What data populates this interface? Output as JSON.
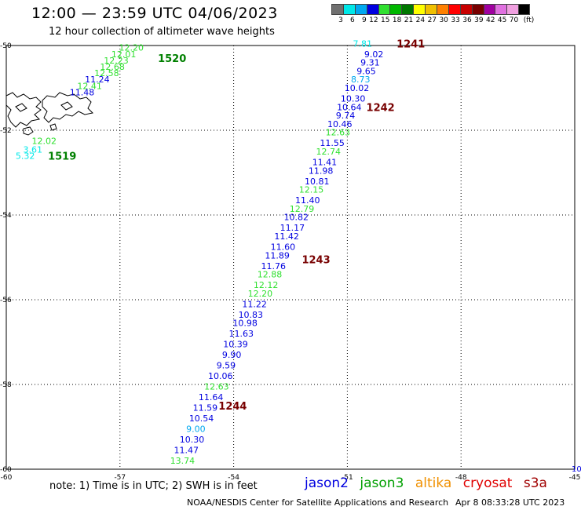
{
  "header": {
    "title": "12:00 — 23:59 UTC 04/06/2023",
    "subtitle": "12 hour collection of altimeter wave heights"
  },
  "scale": {
    "unit": "(ft)",
    "colors": [
      "#707070",
      "#00e8e8",
      "#00a8f0",
      "#0000e0",
      "#30e030",
      "#00b800",
      "#007800",
      "#ffff00",
      "#f0c000",
      "#ff8000",
      "#ff0000",
      "#c80000",
      "#780000",
      "#a000a0",
      "#e070e0",
      "#f0a0e0",
      "#000000"
    ],
    "labels": [
      "3",
      "6",
      "9",
      "12",
      "15",
      "18",
      "21",
      "24",
      "27",
      "30",
      "33",
      "36",
      "39",
      "42",
      "45",
      "70"
    ]
  },
  "chart_data": {
    "type": "scatter",
    "title": "12:00 — 23:59 UTC 04/06/2023",
    "subtitle": "12 hour collection of altimeter wave heights",
    "x_ticks": [
      "-60",
      "-57",
      "-54",
      "-51",
      "-48",
      "-45"
    ],
    "y_ticks": [
      "-50",
      "-52",
      "-54",
      "-56",
      "-58",
      "-60"
    ],
    "xlim": [
      -60,
      -45
    ],
    "ylim": [
      -60,
      -50
    ],
    "grid": true,
    "corner_label": "10",
    "track_times": [
      {
        "label": "1520",
        "lon": -56.0,
        "lat": -50.3
      },
      {
        "label": "1519",
        "lon": -58.9,
        "lat": -52.6
      },
      {
        "label": "1241",
        "lon": -49.7,
        "lat": -49.95
      },
      {
        "label": "1242",
        "lon": -50.5,
        "lat": -51.45
      },
      {
        "label": "1243",
        "lon": -52.2,
        "lat": -55.05
      },
      {
        "label": "1244",
        "lon": -54.4,
        "lat": -58.5
      }
    ],
    "points": [
      {
        "v": "12.20",
        "lon": -56.7,
        "lat": -50.05,
        "c": "#30e030"
      },
      {
        "v": "12.01",
        "lon": -56.9,
        "lat": -50.2,
        "c": "#30e030"
      },
      {
        "v": "12.23",
        "lon": -57.1,
        "lat": -50.35,
        "c": "#30e030"
      },
      {
        "v": "12.68",
        "lon": -57.2,
        "lat": -50.5,
        "c": "#30e030"
      },
      {
        "v": "12.58",
        "lon": -57.35,
        "lat": -50.65,
        "c": "#30e030"
      },
      {
        "v": "11.24",
        "lon": -57.6,
        "lat": -50.8,
        "c": "#0000e0"
      },
      {
        "v": "12.41",
        "lon": -57.8,
        "lat": -50.95,
        "c": "#30e030"
      },
      {
        "v": "11.48",
        "lon": -58.0,
        "lat": -51.1,
        "c": "#0000e0"
      },
      {
        "v": "12.02",
        "lon": -59.0,
        "lat": -52.25,
        "c": "#30e030"
      },
      {
        "v": "3.61",
        "lon": -59.3,
        "lat": -52.45,
        "c": "#00e8e8"
      },
      {
        "v": "5.32",
        "lon": -59.5,
        "lat": -52.6,
        "c": "#00e8e8"
      },
      {
        "v": "7.81",
        "lon": -50.6,
        "lat": -49.95,
        "c": "#00e8e8"
      },
      {
        "v": "9.02",
        "lon": -50.3,
        "lat": -50.2,
        "c": "#0000e0"
      },
      {
        "v": "9.31",
        "lon": -50.4,
        "lat": -50.4,
        "c": "#0000e0"
      },
      {
        "v": "9.65",
        "lon": -50.5,
        "lat": -50.6,
        "c": "#0000e0"
      },
      {
        "v": "8.73",
        "lon": -50.65,
        "lat": -50.8,
        "c": "#00a8f0"
      },
      {
        "v": "10.02",
        "lon": -50.75,
        "lat": -51.0,
        "c": "#0000e0"
      },
      {
        "v": "10.30",
        "lon": -50.85,
        "lat": -51.25,
        "c": "#0000e0"
      },
      {
        "v": "10.64",
        "lon": -50.95,
        "lat": -51.45,
        "c": "#0000e0"
      },
      {
        "v": "9.74",
        "lon": -51.05,
        "lat": -51.65,
        "c": "#0000e0"
      },
      {
        "v": "10.46",
        "lon": -51.2,
        "lat": -51.85,
        "c": "#0000e0"
      },
      {
        "v": "12.63",
        "lon": -51.25,
        "lat": -52.05,
        "c": "#30e030"
      },
      {
        "v": "11.55",
        "lon": -51.4,
        "lat": -52.3,
        "c": "#0000e0"
      },
      {
        "v": "12.74",
        "lon": -51.5,
        "lat": -52.5,
        "c": "#30e030"
      },
      {
        "v": "11.41",
        "lon": -51.6,
        "lat": -52.75,
        "c": "#0000e0"
      },
      {
        "v": "11.98",
        "lon": -51.7,
        "lat": -52.95,
        "c": "#0000e0"
      },
      {
        "v": "10.81",
        "lon": -51.8,
        "lat": -53.2,
        "c": "#0000e0"
      },
      {
        "v": "12.15",
        "lon": -51.95,
        "lat": -53.4,
        "c": "#30e030"
      },
      {
        "v": "11.40",
        "lon": -52.05,
        "lat": -53.65,
        "c": "#0000e0"
      },
      {
        "v": "12.79",
        "lon": -52.2,
        "lat": -53.85,
        "c": "#30e030"
      },
      {
        "v": "10.82",
        "lon": -52.35,
        "lat": -54.05,
        "c": "#0000e0"
      },
      {
        "v": "11.17",
        "lon": -52.45,
        "lat": -54.3,
        "c": "#0000e0"
      },
      {
        "v": "11.42",
        "lon": -52.6,
        "lat": -54.5,
        "c": "#0000e0"
      },
      {
        "v": "11.60",
        "lon": -52.7,
        "lat": -54.75,
        "c": "#0000e0"
      },
      {
        "v": "11.89",
        "lon": -52.85,
        "lat": -54.95,
        "c": "#0000e0"
      },
      {
        "v": "11.76",
        "lon": -52.95,
        "lat": -55.2,
        "c": "#0000e0"
      },
      {
        "v": "12.88",
        "lon": -53.05,
        "lat": -55.4,
        "c": "#30e030"
      },
      {
        "v": "12.12",
        "lon": -53.15,
        "lat": -55.65,
        "c": "#30e030"
      },
      {
        "v": "12.20",
        "lon": -53.3,
        "lat": -55.85,
        "c": "#30e030"
      },
      {
        "v": "11.22",
        "lon": -53.45,
        "lat": -56.1,
        "c": "#0000e0"
      },
      {
        "v": "10.83",
        "lon": -53.55,
        "lat": -56.35,
        "c": "#0000e0"
      },
      {
        "v": "10.98",
        "lon": -53.7,
        "lat": -56.55,
        "c": "#0000e0"
      },
      {
        "v": "11.63",
        "lon": -53.8,
        "lat": -56.8,
        "c": "#0000e0"
      },
      {
        "v": "10.39",
        "lon": -53.95,
        "lat": -57.05,
        "c": "#0000e0"
      },
      {
        "v": "9.90",
        "lon": -54.05,
        "lat": -57.3,
        "c": "#0000e0"
      },
      {
        "v": "9.59",
        "lon": -54.2,
        "lat": -57.55,
        "c": "#0000e0"
      },
      {
        "v": "10.06",
        "lon": -54.35,
        "lat": -57.8,
        "c": "#0000e0"
      },
      {
        "v": "12.63",
        "lon": -54.45,
        "lat": -58.05,
        "c": "#30e030"
      },
      {
        "v": "11.64",
        "lon": -54.6,
        "lat": -58.3,
        "c": "#0000e0"
      },
      {
        "v": "11.59",
        "lon": -54.75,
        "lat": -58.55,
        "c": "#0000e0"
      },
      {
        "v": "10.54",
        "lon": -54.85,
        "lat": -58.8,
        "c": "#0000e0"
      },
      {
        "v": "9.00",
        "lon": -55.0,
        "lat": -59.05,
        "c": "#00a8f0"
      },
      {
        "v": "10.30",
        "lon": -55.1,
        "lat": -59.3,
        "c": "#0000e0"
      },
      {
        "v": "11.47",
        "lon": -55.25,
        "lat": -59.55,
        "c": "#0000e0"
      },
      {
        "v": "13.74",
        "lon": -55.35,
        "lat": -59.8,
        "c": "#30e030"
      }
    ]
  },
  "note": "note: 1) Time is in UTC; 2) SWH is in feet",
  "legend": [
    {
      "label": "jason2",
      "color": "#0000e0"
    },
    {
      "label": "jason3",
      "color": "#00a000"
    },
    {
      "label": "altika",
      "color": "#f09000"
    },
    {
      "label": "cryosat",
      "color": "#e00000"
    },
    {
      "label": "s3a",
      "color": "#a00000"
    }
  ],
  "credit": "NOAA/NESDIS Center for Satellite Applications and Research",
  "credit_date": "Apr  8 08:33:28 UTC 2023"
}
